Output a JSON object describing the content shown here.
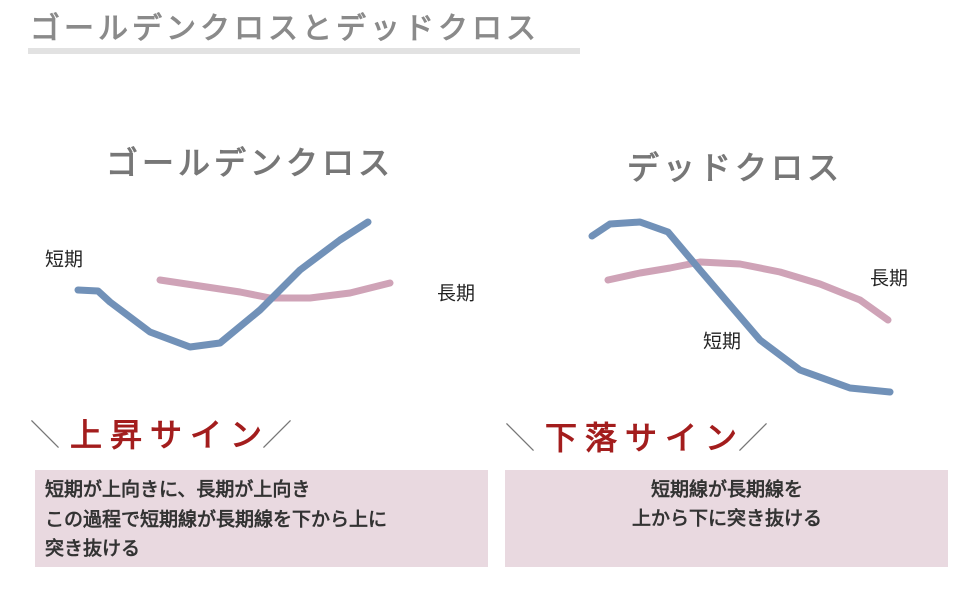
{
  "header": {
    "title": "ゴールデンクロスとデッドクロス"
  },
  "panels": [
    {
      "title": "ゴールデンクロス",
      "short_label": "短期",
      "long_label": "長期",
      "sign": {
        "left": "＼",
        "text": "上昇サイン",
        "right": "／"
      },
      "description": [
        "短期が上向きに、長期が上向き",
        "この過程で短期線が長期線を下から上に",
        "突き抜ける"
      ]
    },
    {
      "title": "デッドクロス",
      "short_label": "短期",
      "long_label": "長期",
      "sign": {
        "left": "＼",
        "text": "下落サイン",
        "right": "／"
      },
      "description": [
        "短期線が長期線を",
        "上から下に突き抜ける"
      ]
    }
  ]
}
